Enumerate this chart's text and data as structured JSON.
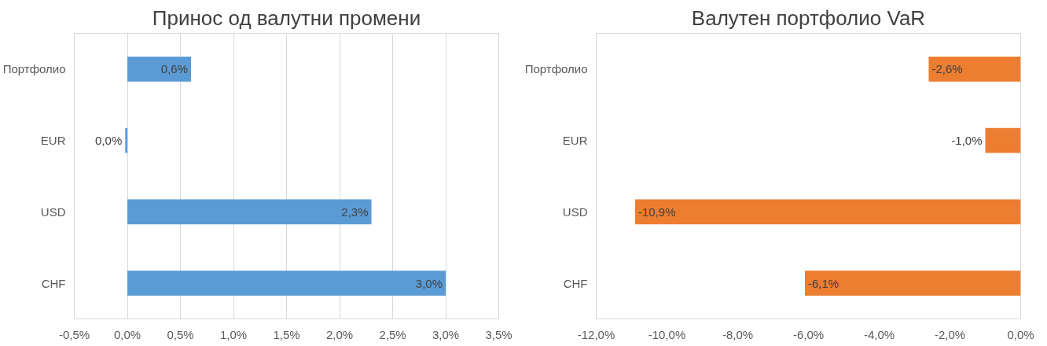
{
  "chart_data": [
    {
      "type": "bar",
      "orientation": "horizontal",
      "title": "Принос од валутни промени",
      "categories": [
        "Портфолио",
        "EUR",
        "USD",
        "CHF"
      ],
      "values": [
        0.6,
        -0.02,
        2.3,
        3.0
      ],
      "value_labels": [
        "0,6%",
        "0,0%",
        "2,3%",
        "3,0%"
      ],
      "color": "#5b9bd5",
      "xlim": [
        -0.5,
        3.5
      ],
      "xticks": [
        {
          "value": -0.5,
          "label": "-0,5%"
        },
        {
          "value": 0,
          "label": "0,0%"
        },
        {
          "value": 0.5,
          "label": "0,5%"
        },
        {
          "value": 1.0,
          "label": "1,0%"
        },
        {
          "value": 1.5,
          "label": "1,5%"
        },
        {
          "value": 2.0,
          "label": "2,0%"
        },
        {
          "value": 2.5,
          "label": "2,5%"
        },
        {
          "value": 3.0,
          "label": "3,0%"
        },
        {
          "value": 3.5,
          "label": "3,5%"
        }
      ],
      "grid": "x"
    },
    {
      "type": "bar",
      "orientation": "horizontal",
      "title": "Валутен портфолио VaR",
      "categories": [
        "Портфолио",
        "EUR",
        "USD",
        "CHF"
      ],
      "values": [
        -2.6,
        -1.0,
        -10.9,
        -6.1
      ],
      "value_labels": [
        "-2,6%",
        "-1,0%",
        "-10,9%",
        "-6,1%"
      ],
      "color": "#ed7d31",
      "xlim": [
        -12,
        0
      ],
      "xticks": [
        {
          "value": -12,
          "label": "-12,0%"
        },
        {
          "value": -10,
          "label": "-10,0%"
        },
        {
          "value": -8,
          "label": "-8,0%"
        },
        {
          "value": -6,
          "label": "-6,0%"
        },
        {
          "value": -4,
          "label": "-4,0%"
        },
        {
          "value": -2,
          "label": "-2,0%"
        },
        {
          "value": 0,
          "label": "0,0%"
        }
      ],
      "grid": false
    }
  ]
}
